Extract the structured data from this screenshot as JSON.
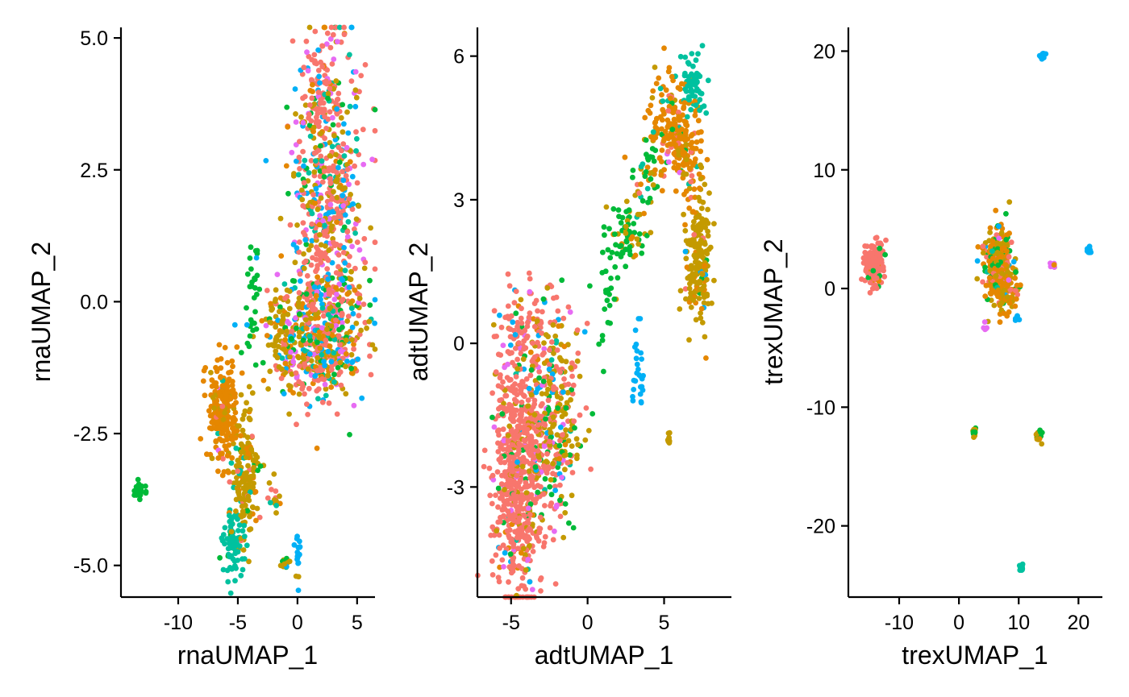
{
  "chart_data": [
    {
      "type": "scatter",
      "title": "",
      "xlabel": "rnaUMAP_1",
      "ylabel": "rnaUMAP_2",
      "xlim": [
        -14.8,
        6.5
      ],
      "ylim": [
        -5.6,
        5.2
      ],
      "xticks": [
        -10,
        -5,
        0,
        5
      ],
      "xtick_labels": [
        "-10",
        "-5",
        "0",
        "5"
      ],
      "yticks": [
        -5,
        -2.5,
        0,
        2.5,
        5
      ],
      "ytick_labels": [
        "-5.0",
        "-2.5",
        "0.0",
        "2.5",
        "5.0"
      ],
      "grid": false,
      "legend": "none",
      "clusters": [
        {
          "cx": 2.6,
          "cy": 2.0,
          "sx": 1.5,
          "sy": 1.6,
          "n": 600,
          "mix": [
            0.42,
            0.05,
            0.18,
            0.06,
            0.08,
            0.12,
            0.09
          ]
        },
        {
          "cx": 1.8,
          "cy": 4.0,
          "sx": 0.6,
          "sy": 0.5,
          "n": 60,
          "mix": [
            0.8,
            0.05,
            0.1,
            0.02,
            0,
            0.02,
            0.01
          ]
        },
        {
          "cx": 2.3,
          "cy": -0.5,
          "sx": 1.8,
          "sy": 0.6,
          "n": 320,
          "mix": [
            0.3,
            0.1,
            0.25,
            0.08,
            0.07,
            0.12,
            0.08
          ]
        },
        {
          "cx": 1.5,
          "cy": -1.2,
          "sx": 1.6,
          "sy": 0.25,
          "n": 120,
          "mix": [
            0.25,
            0.1,
            0.3,
            0.1,
            0.05,
            0.12,
            0.08
          ]
        },
        {
          "cx": -1.2,
          "cy": -0.6,
          "sx": 0.9,
          "sy": 0.5,
          "n": 100,
          "mix": [
            0.05,
            0.15,
            0.65,
            0.05,
            0.03,
            0.05,
            0.02
          ]
        },
        {
          "cx": -3.8,
          "cy": 0.0,
          "sx": 0.35,
          "sy": 0.5,
          "n": 35,
          "mix": [
            0,
            0,
            0,
            0.95,
            0,
            0.05,
            0
          ]
        },
        {
          "cx": -6.2,
          "cy": -2.1,
          "sx": 0.6,
          "sy": 0.5,
          "n": 230,
          "mix": [
            0.05,
            0.83,
            0.07,
            0.02,
            0.02,
            0,
            0.01
          ]
        },
        {
          "cx": -4.4,
          "cy": -3.3,
          "sx": 0.6,
          "sy": 0.6,
          "n": 170,
          "mix": [
            0.05,
            0.1,
            0.75,
            0.05,
            0.05,
            0,
            0
          ]
        },
        {
          "cx": -5.3,
          "cy": -4.5,
          "sx": 0.4,
          "sy": 0.35,
          "n": 80,
          "mix": [
            0,
            0,
            0,
            0.05,
            0.95,
            0,
            0
          ]
        },
        {
          "cx": -13.3,
          "cy": -3.55,
          "sx": 0.25,
          "sy": 0.12,
          "n": 28,
          "mix": [
            0,
            0,
            0,
            1,
            0,
            0,
            0
          ]
        },
        {
          "cx": 0.0,
          "cy": -4.8,
          "sx": 0.12,
          "sy": 0.2,
          "n": 18,
          "mix": [
            0,
            0,
            0.1,
            0,
            0,
            0.9,
            0
          ]
        },
        {
          "cx": -1.2,
          "cy": -4.95,
          "sx": 0.2,
          "sy": 0.05,
          "n": 12,
          "mix": [
            0,
            0,
            0.4,
            0.5,
            0,
            0.1,
            0
          ]
        },
        {
          "cx": -1.8,
          "cy": -3.7,
          "sx": 0.3,
          "sy": 0.25,
          "n": 14,
          "mix": [
            0.2,
            0.2,
            0.4,
            0.1,
            0.1,
            0,
            0
          ]
        }
      ]
    },
    {
      "type": "scatter",
      "title": "",
      "xlabel": "adtUMAP_1",
      "ylabel": "adtUMAP_2",
      "xlim": [
        -7.2,
        9.4
      ],
      "ylim": [
        -5.3,
        6.6
      ],
      "xticks": [
        -5,
        0,
        5
      ],
      "xtick_labels": [
        "-5",
        "0",
        "5"
      ],
      "yticks": [
        -3,
        0,
        3,
        6
      ],
      "ytick_labels": [
        "-3",
        "0",
        "3",
        "6"
      ],
      "grid": false,
      "legend": "none",
      "clusters": [
        {
          "cx": -4.5,
          "cy": -2.7,
          "sx": 0.8,
          "sy": 1.3,
          "n": 650,
          "mix": [
            0.82,
            0.03,
            0.06,
            0.03,
            0.01,
            0.02,
            0.03
          ]
        },
        {
          "cx": -2.2,
          "cy": -1.6,
          "sx": 0.9,
          "sy": 1.1,
          "n": 330,
          "mix": [
            0.3,
            0.05,
            0.35,
            0.12,
            0.03,
            0.08,
            0.07
          ]
        },
        {
          "cx": -4.0,
          "cy": 0.4,
          "sx": 1.0,
          "sy": 0.45,
          "n": 90,
          "mix": [
            0.7,
            0.05,
            0.1,
            0.05,
            0,
            0.05,
            0.05
          ]
        },
        {
          "cx": 2.6,
          "cy": 2.3,
          "sx": 0.6,
          "sy": 0.35,
          "n": 60,
          "mix": [
            0,
            0.05,
            0.15,
            0.8,
            0,
            0,
            0
          ]
        },
        {
          "cx": 3.8,
          "cy": 3.6,
          "sx": 0.4,
          "sy": 0.6,
          "n": 50,
          "mix": [
            0.05,
            0.1,
            0.3,
            0.5,
            0.05,
            0,
            0
          ]
        },
        {
          "cx": 1.3,
          "cy": 1.2,
          "sx": 0.5,
          "sy": 0.7,
          "n": 30,
          "mix": [
            0,
            0,
            0.1,
            0.9,
            0,
            0,
            0
          ]
        },
        {
          "cx": 5.4,
          "cy": 4.6,
          "sx": 0.6,
          "sy": 0.5,
          "n": 160,
          "mix": [
            0.05,
            0.85,
            0.05,
            0.02,
            0.02,
            0,
            0.01
          ]
        },
        {
          "cx": 6.6,
          "cy": 3.9,
          "sx": 0.5,
          "sy": 0.45,
          "n": 90,
          "mix": [
            0.05,
            0.8,
            0.1,
            0.02,
            0.02,
            0,
            0.01
          ]
        },
        {
          "cx": 6.9,
          "cy": 5.4,
          "sx": 0.45,
          "sy": 0.35,
          "n": 60,
          "mix": [
            0,
            0.05,
            0,
            0,
            0.95,
            0,
            0
          ]
        },
        {
          "cx": 7.2,
          "cy": 1.7,
          "sx": 0.45,
          "sy": 0.7,
          "n": 180,
          "mix": [
            0.03,
            0.1,
            0.82,
            0.02,
            0,
            0.03,
            0
          ]
        },
        {
          "cx": 3.3,
          "cy": -0.6,
          "sx": 0.2,
          "sy": 0.5,
          "n": 28,
          "mix": [
            0,
            0,
            0,
            0,
            0,
            1,
            0
          ]
        },
        {
          "cx": 5.3,
          "cy": -1.95,
          "sx": 0.05,
          "sy": 0.06,
          "n": 8,
          "mix": [
            0,
            0,
            1,
            0,
            0,
            0,
            0
          ]
        }
      ]
    },
    {
      "type": "scatter",
      "title": "",
      "xlabel": "trexUMAP_1",
      "ylabel": "trexUMAP_2",
      "xlim": [
        -18.5,
        24
      ],
      "ylim": [
        -26,
        22
      ],
      "xticks": [
        -10,
        0,
        10,
        20
      ],
      "xtick_labels": [
        "-10",
        "0",
        "10",
        "20"
      ],
      "yticks": [
        -20,
        -10,
        0,
        10,
        20
      ],
      "ytick_labels": [
        "-20",
        "-10",
        "0",
        "10",
        "20"
      ],
      "grid": false,
      "legend": "none",
      "clusters": [
        {
          "cx": -14.2,
          "cy": 2.0,
          "sx": 0.8,
          "sy": 0.9,
          "n": 220,
          "mix": [
            0.92,
            0.03,
            0,
            0.04,
            0,
            0.01,
            0
          ]
        },
        {
          "cx": 6.5,
          "cy": 2.0,
          "sx": 1.3,
          "sy": 1.5,
          "n": 260,
          "mix": [
            0.1,
            0.3,
            0.35,
            0.12,
            0.04,
            0.05,
            0.04
          ]
        },
        {
          "cx": 7.5,
          "cy": 0.0,
          "sx": 1.0,
          "sy": 1.2,
          "n": 80,
          "mix": [
            0.05,
            0.6,
            0.25,
            0.05,
            0,
            0.05,
            0
          ]
        },
        {
          "cx": 14.0,
          "cy": 19.6,
          "sx": 0.2,
          "sy": 0.2,
          "n": 20,
          "mix": [
            0,
            0,
            0,
            0,
            0,
            1,
            0
          ]
        },
        {
          "cx": 10.4,
          "cy": -23.5,
          "sx": 0.2,
          "sy": 0.2,
          "n": 20,
          "mix": [
            0,
            0,
            0,
            0,
            1,
            0,
            0
          ]
        },
        {
          "cx": 2.6,
          "cy": -12.3,
          "sx": 0.15,
          "sy": 0.25,
          "n": 15,
          "mix": [
            0,
            0,
            0.7,
            0.3,
            0,
            0,
            0
          ]
        },
        {
          "cx": 13.4,
          "cy": -12.4,
          "sx": 0.25,
          "sy": 0.25,
          "n": 25,
          "mix": [
            0,
            0.15,
            0.45,
            0.4,
            0,
            0,
            0
          ]
        },
        {
          "cx": 21.8,
          "cy": 3.2,
          "sx": 0.2,
          "sy": 0.2,
          "n": 10,
          "mix": [
            0,
            0,
            0.3,
            0,
            0,
            0.7,
            0
          ]
        },
        {
          "cx": 15.8,
          "cy": 2.0,
          "sx": 0.3,
          "sy": 0.15,
          "n": 8,
          "mix": [
            0,
            0.2,
            0.3,
            0,
            0,
            0,
            0.5
          ]
        },
        {
          "cx": 9.5,
          "cy": -2.5,
          "sx": 0.25,
          "sy": 0.2,
          "n": 6,
          "mix": [
            0,
            0,
            0,
            0,
            0,
            1,
            0
          ]
        },
        {
          "cx": 4.5,
          "cy": -3.1,
          "sx": 0.2,
          "sy": 0.2,
          "n": 5,
          "mix": [
            0,
            0,
            0,
            0,
            0,
            0,
            1
          ]
        }
      ]
    }
  ],
  "palette": [
    "#F8766D",
    "#E58700",
    "#C49A00",
    "#00BA38",
    "#00C19F",
    "#00B0F6",
    "#E76BF3"
  ]
}
